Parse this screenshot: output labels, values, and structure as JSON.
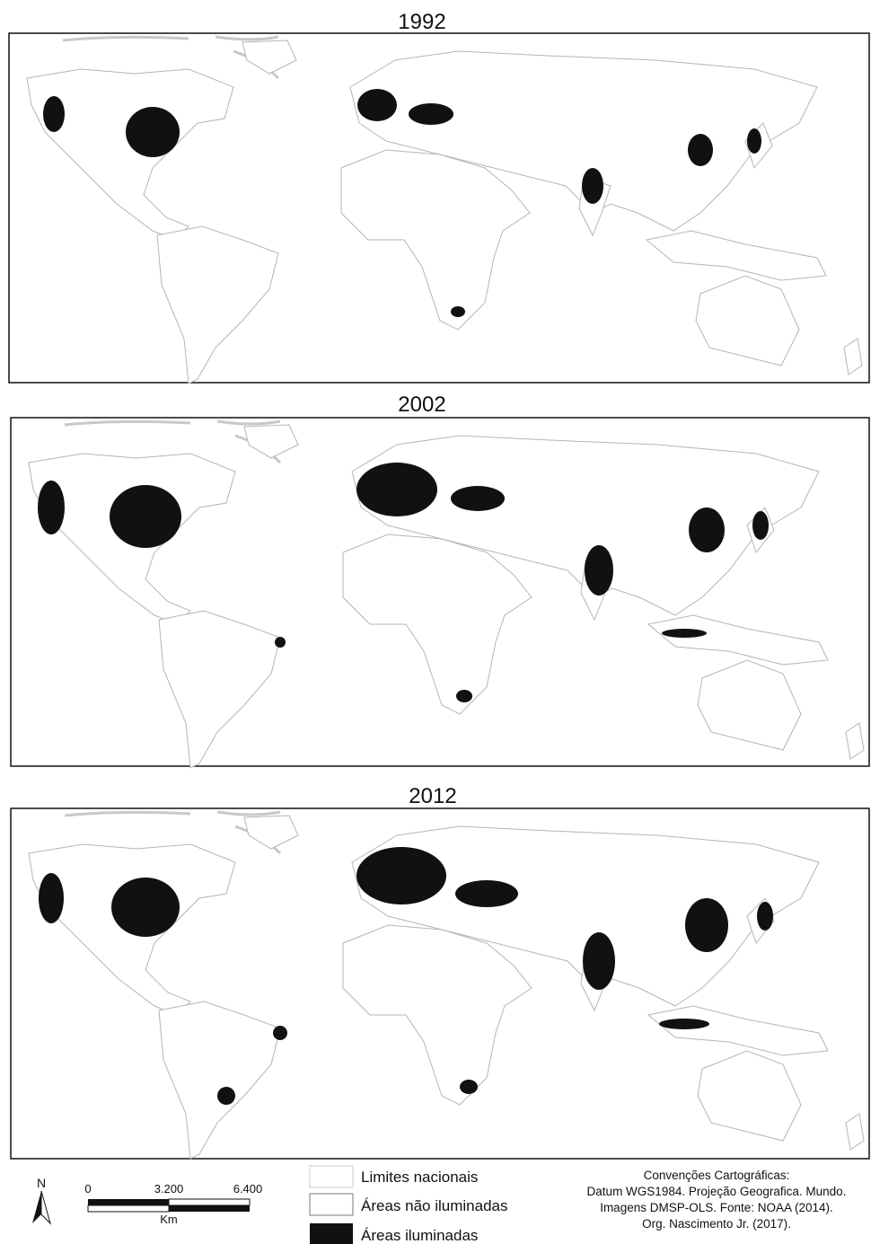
{
  "maps": [
    {
      "title": "1992"
    },
    {
      "title": "2002"
    },
    {
      "title": "2012"
    }
  ],
  "north_arrow": {
    "label": "N"
  },
  "scale_bar": {
    "labels": [
      "0",
      "3.200",
      "6.400"
    ],
    "unit": "Km"
  },
  "legend": {
    "items": [
      "Limites nacionais",
      "Áreas não iluminadas",
      "Áreas iluminadas"
    ]
  },
  "credits": {
    "lines": [
      "Convenções Cartográficas:",
      "Datum WGS1984. Projeção Geografica. Mundo.",
      "Imagens DMSP-OLS. Fonte: NOAA (2014).",
      "Org. Nascimento Jr. (2017)."
    ]
  }
}
